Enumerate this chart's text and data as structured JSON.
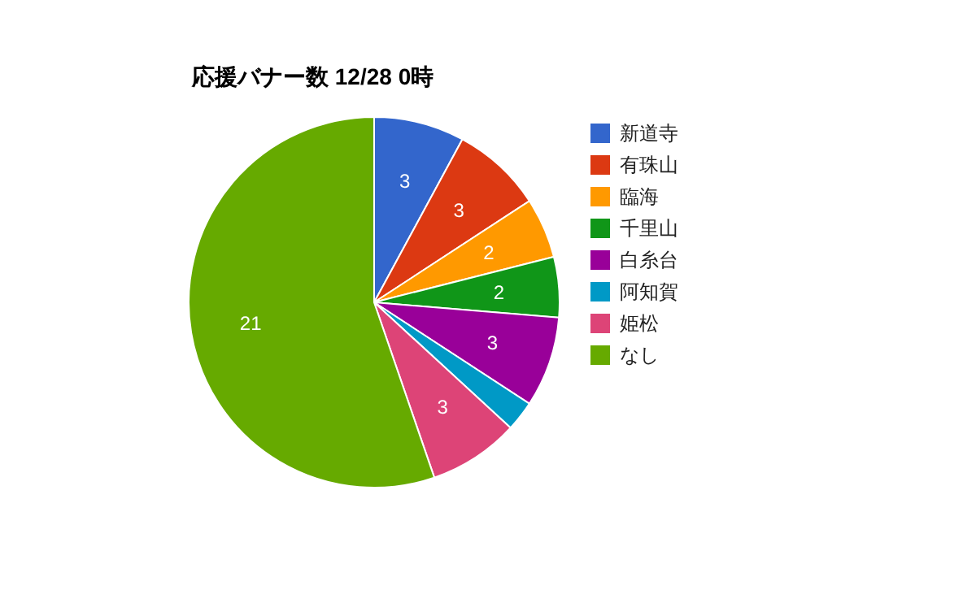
{
  "chart_data": {
    "type": "pie",
    "title": "応援バナー数 12/28 0時",
    "categories": [
      "新道寺",
      "有珠山",
      "臨海",
      "千里山",
      "白糸台",
      "阿知賀",
      "姫松",
      "なし"
    ],
    "values": [
      3,
      3,
      2,
      2,
      3,
      1,
      3,
      21
    ],
    "value_labels": [
      "3",
      "3",
      "2",
      "2",
      "3",
      null,
      "3",
      "21"
    ],
    "colors": [
      "#3366cc",
      "#dc3912",
      "#ff9900",
      "#109618",
      "#990099",
      "#0099c6",
      "#dd4477",
      "#66aa00"
    ],
    "legend": "right"
  }
}
